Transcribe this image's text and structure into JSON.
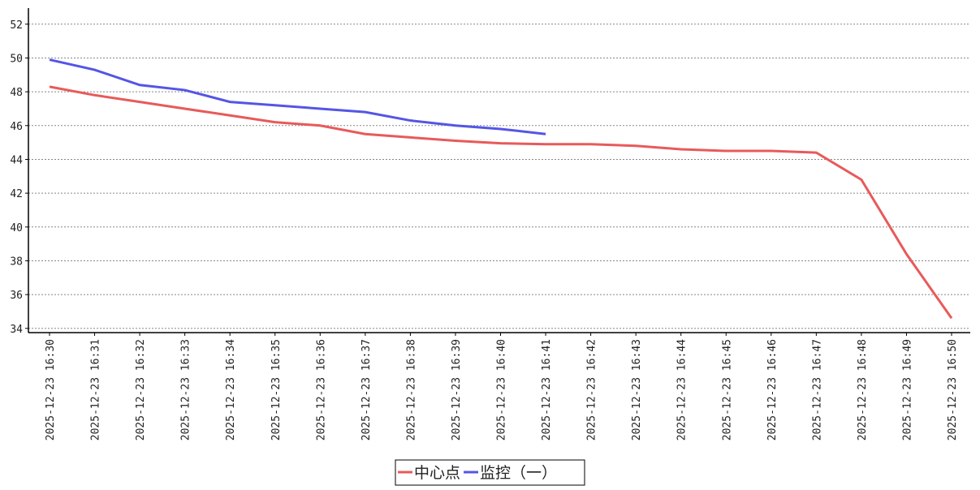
{
  "chart_data": {
    "type": "line",
    "categories": [
      "2025-12-23 16:30",
      "2025-12-23 16:31",
      "2025-12-23 16:32",
      "2025-12-23 16:33",
      "2025-12-23 16:34",
      "2025-12-23 16:35",
      "2025-12-23 16:36",
      "2025-12-23 16:37",
      "2025-12-23 16:38",
      "2025-12-23 16:39",
      "2025-12-23 16:40",
      "2025-12-23 16:41",
      "2025-12-23 16:42",
      "2025-12-23 16:43",
      "2025-12-23 16:44",
      "2025-12-23 16:45",
      "2025-12-23 16:46",
      "2025-12-23 16:47",
      "2025-12-23 16:48",
      "2025-12-23 16:49",
      "2025-12-23 16:50"
    ],
    "series": [
      {
        "name": "中心点",
        "color": "#e85a5a",
        "values": [
          48.3,
          47.8,
          47.4,
          47.0,
          46.6,
          46.2,
          46.0,
          45.5,
          45.3,
          45.1,
          44.95,
          44.9,
          44.9,
          44.8,
          44.6,
          44.5,
          44.5,
          44.4,
          42.8,
          38.4,
          34.6
        ]
      },
      {
        "name": "监控（一）",
        "color": "#5555e6",
        "values": [
          49.9,
          49.3,
          48.4,
          48.1,
          47.4,
          47.2,
          47.0,
          46.8,
          46.3,
          46.0,
          45.8,
          45.5,
          null,
          null,
          null,
          null,
          null,
          null,
          null,
          null,
          null
        ]
      }
    ],
    "ylim": [
      33.75,
      52.95
    ],
    "yticks": [
      34,
      36,
      38,
      40,
      42,
      44,
      46,
      48,
      50,
      52
    ],
    "grid": true
  }
}
